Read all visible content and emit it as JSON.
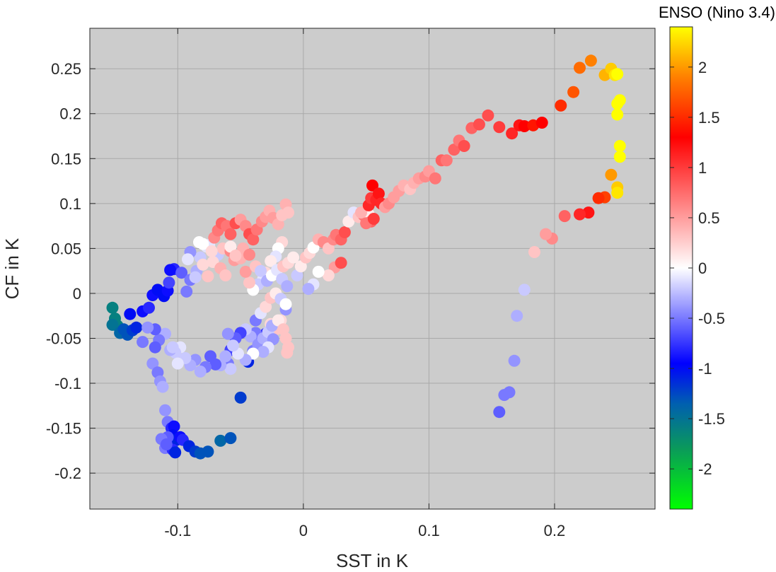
{
  "chart_data": {
    "type": "scatter",
    "title": "",
    "xlabel": "SST in K",
    "ylabel": "CF in K",
    "xlim": [
      -0.17,
      0.28
    ],
    "ylim": [
      -0.24,
      0.295
    ],
    "xticks": [
      -0.1,
      0,
      0.1,
      0.2
    ],
    "xtick_labels": [
      "-0.1",
      "0",
      "0.1",
      "0.2"
    ],
    "yticks": [
      -0.2,
      -0.15,
      -0.1,
      -0.05,
      0,
      0.05,
      0.1,
      0.15,
      0.2,
      0.25
    ],
    "ytick_labels": [
      "-0.2",
      "-0.15",
      "-0.1",
      "-0.05",
      "0",
      "0.05",
      "0.1",
      "0.15",
      "0.2",
      "0.25"
    ],
    "grid": true,
    "colorbar": {
      "title": "ENSO (Nino 3.4)",
      "range": [
        -2.4,
        2.4
      ],
      "ticks": [
        -2,
        -1.5,
        -1,
        -0.5,
        0,
        0.5,
        1,
        1.5,
        2
      ],
      "tick_labels": [
        "-2",
        "-1.5",
        "-1",
        "-0.5",
        "0",
        "0.5",
        "1",
        "1.5",
        "2"
      ],
      "colors": [
        "#00ff00",
        "#0a9a5a",
        "#005fb0",
        "#0000ff",
        "#ffffff",
        "#ff0000",
        "#ff8000",
        "#ffff00"
      ]
    },
    "points": [
      [
        -0.152,
        -0.016,
        -1.6
      ],
      [
        -0.15,
        -0.028,
        -1.6
      ],
      [
        -0.148,
        -0.036,
        -1.6
      ],
      [
        -0.152,
        -0.035,
        -1.5
      ],
      [
        -0.146,
        -0.044,
        -1.4
      ],
      [
        -0.143,
        -0.04,
        -1.3
      ],
      [
        -0.14,
        -0.046,
        -1.3
      ],
      [
        -0.136,
        -0.041,
        -1.2
      ],
      [
        -0.133,
        -0.038,
        -1.1
      ],
      [
        -0.138,
        -0.023,
        -1.0
      ],
      [
        -0.128,
        -0.02,
        -0.9
      ],
      [
        -0.123,
        -0.016,
        -0.8
      ],
      [
        -0.12,
        -0.002,
        -0.9
      ],
      [
        -0.116,
        0.004,
        -1.0
      ],
      [
        -0.111,
        -0.003,
        -1.0
      ],
      [
        -0.108,
        0.003,
        -0.9
      ],
      [
        -0.107,
        0.012,
        -0.7
      ],
      [
        -0.103,
        0.027,
        -0.8
      ],
      [
        -0.106,
        0.026,
        -0.9
      ],
      [
        -0.097,
        0.023,
        -0.6
      ],
      [
        -0.093,
        0.002,
        -0.5
      ],
      [
        -0.09,
        0.015,
        -0.5
      ],
      [
        -0.085,
        0.025,
        -0.3
      ],
      [
        -0.082,
        0.04,
        -0.2
      ],
      [
        -0.075,
        0.054,
        -0.1
      ],
      [
        -0.068,
        0.043,
        -0.2
      ],
      [
        -0.064,
        0.05,
        0.3
      ],
      [
        -0.058,
        0.047,
        0.6
      ],
      [
        -0.055,
        0.037,
        0.5
      ],
      [
        -0.05,
        0.039,
        0.4
      ],
      [
        -0.09,
        0.046,
        -0.4
      ],
      [
        -0.086,
        0.018,
        -0.2
      ],
      [
        -0.08,
        0.032,
        0.2
      ],
      [
        -0.076,
        0.019,
        0.3
      ],
      [
        -0.072,
        0.035,
        0.2
      ],
      [
        -0.066,
        0.028,
        0.4
      ],
      [
        -0.062,
        0.02,
        0.3
      ],
      [
        -0.083,
        0.057,
        0.0
      ],
      [
        -0.077,
        0.052,
        -0.1
      ],
      [
        -0.071,
        0.062,
        0.6
      ],
      [
        -0.068,
        0.07,
        0.7
      ],
      [
        -0.065,
        0.078,
        0.8
      ],
      [
        -0.061,
        0.075,
        0.7
      ],
      [
        -0.058,
        0.066,
        0.8
      ],
      [
        -0.054,
        0.078,
        0.9
      ],
      [
        -0.05,
        0.082,
        0.5
      ],
      [
        -0.046,
        0.075,
        0.6
      ],
      [
        -0.043,
        0.066,
        0.9
      ],
      [
        -0.04,
        0.06,
        0.8
      ],
      [
        -0.037,
        0.071,
        0.7
      ],
      [
        -0.033,
        0.08,
        0.6
      ],
      [
        -0.03,
        0.085,
        0.5
      ],
      [
        -0.027,
        0.092,
        0.4
      ],
      [
        -0.024,
        0.084,
        0.5
      ],
      [
        -0.02,
        0.077,
        0.4
      ],
      [
        -0.017,
        0.087,
        0.3
      ],
      [
        -0.014,
        0.099,
        0.4
      ],
      [
        -0.012,
        0.09,
        0.3
      ],
      [
        -0.017,
        0.057,
        0.2
      ],
      [
        -0.02,
        0.05,
        0.0
      ],
      [
        -0.022,
        0.041,
        -0.1
      ],
      [
        -0.026,
        0.036,
        0.1
      ],
      [
        -0.03,
        0.023,
        0.2
      ],
      [
        -0.032,
        0.016,
        -0.1
      ],
      [
        -0.036,
        0.01,
        -0.2
      ],
      [
        -0.04,
        0.004,
        0.0
      ],
      [
        -0.043,
        0.012,
        0.3
      ],
      [
        -0.046,
        0.024,
        0.5
      ],
      [
        -0.048,
        0.05,
        0.4
      ],
      [
        -0.043,
        0.043,
        0.6
      ],
      [
        -0.038,
        0.03,
        0.3
      ],
      [
        -0.034,
        0.025,
        -0.2
      ],
      [
        -0.029,
        0.014,
        -0.3
      ],
      [
        -0.025,
        0.02,
        0.0
      ],
      [
        -0.021,
        0.026,
        -0.1
      ],
      [
        -0.017,
        0.016,
        -0.2
      ],
      [
        -0.013,
        0.008,
        -0.3
      ],
      [
        -0.014,
        -0.018,
        -0.4
      ],
      [
        -0.018,
        -0.03,
        0.2
      ],
      [
        -0.022,
        -0.04,
        0.3
      ],
      [
        -0.026,
        -0.034,
        0.2
      ],
      [
        -0.03,
        -0.045,
        -0.8
      ],
      [
        -0.034,
        -0.05,
        -1.1
      ],
      [
        -0.038,
        -0.044,
        -0.5
      ],
      [
        -0.042,
        -0.048,
        -0.3
      ],
      [
        -0.046,
        -0.04,
        -0.2
      ],
      [
        -0.05,
        -0.044,
        -0.7
      ],
      [
        -0.054,
        -0.05,
        -0.6
      ],
      [
        -0.058,
        -0.063,
        -0.7
      ],
      [
        -0.06,
        -0.078,
        -0.5
      ],
      [
        -0.058,
        -0.084,
        -0.2
      ],
      [
        -0.062,
        -0.07,
        -0.3
      ],
      [
        -0.066,
        -0.08,
        -0.3
      ],
      [
        -0.07,
        -0.079,
        -0.6
      ],
      [
        -0.074,
        -0.07,
        -0.6
      ],
      [
        -0.078,
        -0.082,
        -0.5
      ],
      [
        -0.082,
        -0.087,
        -0.3
      ],
      [
        -0.086,
        -0.074,
        -0.4
      ],
      [
        -0.09,
        -0.08,
        -0.3
      ],
      [
        -0.094,
        -0.072,
        -0.2
      ],
      [
        -0.098,
        -0.06,
        -0.1
      ],
      [
        -0.102,
        -0.066,
        -0.2
      ],
      [
        -0.106,
        -0.063,
        -0.3
      ],
      [
        -0.1,
        -0.078,
        -0.1
      ],
      [
        -0.104,
        -0.06,
        -0.2
      ],
      [
        -0.11,
        -0.045,
        -0.3
      ],
      [
        -0.115,
        -0.052,
        -0.5
      ],
      [
        -0.118,
        -0.04,
        -0.6
      ],
      [
        -0.124,
        -0.038,
        -0.4
      ],
      [
        -0.128,
        -0.054,
        -0.5
      ],
      [
        -0.118,
        -0.06,
        -0.6
      ],
      [
        -0.12,
        -0.078,
        -0.4
      ],
      [
        -0.116,
        -0.088,
        -0.5
      ],
      [
        -0.114,
        -0.098,
        -0.4
      ],
      [
        -0.112,
        -0.104,
        -0.3
      ],
      [
        -0.11,
        -0.13,
        -0.4
      ],
      [
        -0.108,
        -0.143,
        -0.5
      ],
      [
        -0.105,
        -0.15,
        -0.8
      ],
      [
        -0.103,
        -0.148,
        -0.9
      ],
      [
        -0.104,
        -0.158,
        -1.0
      ],
      [
        -0.106,
        -0.162,
        -1.0
      ],
      [
        -0.101,
        -0.163,
        -1.1
      ],
      [
        -0.098,
        -0.16,
        -0.9
      ],
      [
        -0.096,
        -0.163,
        -0.8
      ],
      [
        -0.091,
        -0.17,
        -1.1
      ],
      [
        -0.086,
        -0.176,
        -1.2
      ],
      [
        -0.082,
        -0.178,
        -1.3
      ],
      [
        -0.076,
        -0.176,
        -1.3
      ],
      [
        -0.066,
        -0.164,
        -1.4
      ],
      [
        -0.058,
        -0.161,
        -1.3
      ],
      [
        -0.108,
        -0.16,
        -0.6
      ],
      [
        -0.11,
        -0.172,
        -0.5
      ],
      [
        -0.104,
        -0.174,
        -0.8
      ],
      [
        -0.102,
        -0.177,
        -1.1
      ],
      [
        -0.113,
        -0.162,
        -0.5
      ],
      [
        -0.109,
        -0.168,
        -0.6
      ],
      [
        -0.05,
        -0.116,
        -1.2
      ],
      [
        -0.044,
        -0.076,
        -1.1
      ],
      [
        -0.04,
        -0.064,
        -0.5
      ],
      [
        -0.036,
        -0.057,
        -0.4
      ],
      [
        -0.032,
        -0.05,
        -0.3
      ],
      [
        -0.028,
        -0.043,
        -0.2
      ],
      [
        -0.025,
        -0.036,
        -0.3
      ],
      [
        -0.02,
        -0.03,
        0.1
      ],
      [
        -0.016,
        -0.04,
        0.3
      ],
      [
        -0.014,
        -0.05,
        0.3
      ],
      [
        -0.013,
        -0.066,
        0.3
      ],
      [
        -0.012,
        -0.06,
        0.3
      ],
      [
        -0.024,
        -0.051,
        -0.4
      ],
      [
        -0.028,
        -0.06,
        -0.1
      ],
      [
        -0.032,
        -0.065,
        -0.3
      ],
      [
        -0.04,
        -0.067,
        0.0
      ],
      [
        -0.046,
        -0.074,
        -0.3
      ],
      [
        -0.052,
        -0.067,
        -0.1
      ],
      [
        -0.056,
        -0.058,
        -0.2
      ],
      [
        -0.06,
        -0.045,
        -0.4
      ],
      [
        -0.038,
        -0.03,
        -0.5
      ],
      [
        -0.034,
        -0.022,
        -0.1
      ],
      [
        -0.03,
        -0.015,
        0.2
      ],
      [
        -0.026,
        -0.005,
        0.3
      ],
      [
        -0.022,
        0.0,
        0.1
      ],
      [
        -0.018,
        -0.006,
        -0.2
      ],
      [
        -0.014,
        -0.012,
        0.0
      ],
      [
        -0.016,
        0.03,
        0.3
      ],
      [
        -0.012,
        0.034,
        0.2
      ],
      [
        -0.008,
        0.04,
        0.1
      ],
      [
        -0.005,
        0.02,
        -0.2
      ],
      [
        -0.002,
        0.03,
        0.1
      ],
      [
        0.002,
        0.04,
        0.3
      ],
      [
        0.005,
        0.045,
        0.2
      ],
      [
        0.008,
        0.051,
        0.0
      ],
      [
        0.012,
        0.06,
        0.4
      ],
      [
        0.016,
        0.057,
        0.6
      ],
      [
        0.02,
        0.05,
        0.3
      ],
      [
        0.024,
        0.06,
        0.6
      ],
      [
        0.026,
        0.065,
        0.7
      ],
      [
        0.03,
        0.06,
        0.8
      ],
      [
        0.033,
        0.068,
        0.9
      ],
      [
        0.025,
        0.029,
        0.5
      ],
      [
        0.03,
        0.034,
        0.9
      ],
      [
        0.02,
        0.02,
        0.2
      ],
      [
        0.012,
        0.024,
        0.0
      ],
      [
        0.008,
        0.01,
        -0.1
      ],
      [
        0.004,
        0.005,
        -0.3
      ],
      [
        0.036,
        0.08,
        0.1
      ],
      [
        0.04,
        0.09,
        -0.1
      ],
      [
        0.044,
        0.085,
        0.3
      ],
      [
        0.048,
        0.087,
        0.7
      ],
      [
        0.05,
        0.092,
        0.3
      ],
      [
        0.052,
        0.088,
        0.1
      ],
      [
        0.046,
        0.09,
        0.4
      ],
      [
        0.054,
        0.08,
        0.8
      ],
      [
        0.05,
        0.078,
        0.7
      ],
      [
        0.056,
        0.083,
        1.0
      ],
      [
        0.052,
        0.098,
        1.1
      ],
      [
        0.054,
        0.106,
        1.0
      ],
      [
        0.058,
        0.104,
        1.1
      ],
      [
        0.055,
        0.12,
        1.3
      ],
      [
        0.06,
        0.111,
        1.2
      ],
      [
        0.062,
        0.1,
        1.1
      ],
      [
        0.065,
        0.096,
        0.5
      ],
      [
        0.068,
        0.1,
        0.6
      ],
      [
        0.072,
        0.107,
        0.5
      ],
      [
        0.076,
        0.114,
        0.5
      ],
      [
        0.08,
        0.12,
        0.4
      ],
      [
        0.085,
        0.116,
        0.3
      ],
      [
        0.088,
        0.123,
        0.4
      ],
      [
        0.092,
        0.128,
        0.5
      ],
      [
        0.097,
        0.13,
        0.6
      ],
      [
        0.1,
        0.136,
        0.5
      ],
      [
        0.105,
        0.128,
        0.7
      ],
      [
        0.11,
        0.148,
        0.8
      ],
      [
        0.114,
        0.148,
        0.7
      ],
      [
        0.12,
        0.16,
        0.8
      ],
      [
        0.124,
        0.17,
        0.7
      ],
      [
        0.128,
        0.164,
        0.9
      ],
      [
        0.134,
        0.184,
        0.8
      ],
      [
        0.14,
        0.188,
        0.9
      ],
      [
        0.147,
        0.198,
        0.9
      ],
      [
        0.156,
        0.185,
        1.0
      ],
      [
        0.166,
        0.178,
        1.1
      ],
      [
        0.172,
        0.187,
        1.2
      ],
      [
        0.176,
        0.186,
        1.3
      ],
      [
        0.183,
        0.187,
        1.4
      ],
      [
        0.19,
        0.19,
        1.3
      ],
      [
        0.205,
        0.209,
        1.5
      ],
      [
        0.215,
        0.224,
        1.7
      ],
      [
        0.22,
        0.251,
        1.8
      ],
      [
        0.229,
        0.259,
        1.9
      ],
      [
        0.24,
        0.243,
        2.1
      ],
      [
        0.245,
        0.25,
        2.2
      ],
      [
        0.248,
        0.243,
        2.3
      ],
      [
        0.25,
        0.244,
        2.4
      ],
      [
        0.252,
        0.215,
        2.4
      ],
      [
        0.25,
        0.211,
        2.4
      ],
      [
        0.25,
        0.199,
        2.4
      ],
      [
        0.252,
        0.164,
        2.4
      ],
      [
        0.252,
        0.152,
        2.4
      ],
      [
        0.245,
        0.132,
        2.0
      ],
      [
        0.25,
        0.118,
        2.2
      ],
      [
        0.25,
        0.112,
        2.3
      ],
      [
        0.24,
        0.107,
        1.6
      ],
      [
        0.235,
        0.106,
        1.5
      ],
      [
        0.227,
        0.09,
        1.2
      ],
      [
        0.22,
        0.088,
        1.1
      ],
      [
        0.208,
        0.086,
        0.8
      ],
      [
        0.198,
        0.061,
        0.6
      ],
      [
        0.193,
        0.066,
        0.5
      ],
      [
        0.184,
        0.046,
        0.3
      ],
      [
        0.176,
        0.004,
        -0.2
      ],
      [
        0.17,
        -0.025,
        -0.3
      ],
      [
        0.168,
        -0.075,
        -0.4
      ],
      [
        0.164,
        -0.11,
        -0.5
      ],
      [
        0.16,
        -0.113,
        -0.5
      ],
      [
        0.156,
        -0.132,
        -0.6
      ],
      [
        -0.092,
        0.038,
        -0.1
      ],
      [
        -0.08,
        0.055,
        0.0
      ],
      [
        -0.073,
        0.047,
        0.2
      ],
      [
        -0.058,
        0.052,
        0.1
      ],
      [
        -0.054,
        0.042,
        0.3
      ]
    ]
  }
}
